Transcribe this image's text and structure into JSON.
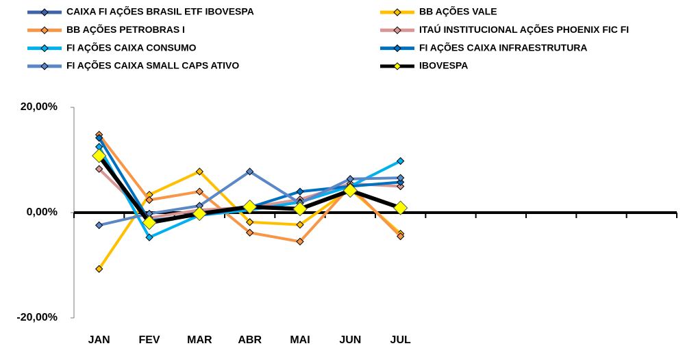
{
  "chart_data": {
    "type": "line",
    "categories": [
      "JAN",
      "FEV",
      "MAR",
      "ABR",
      "MAI",
      "JUN",
      "JUL",
      null,
      null,
      null,
      null,
      null
    ],
    "series": [
      {
        "name": "CAIXA FI AÇÕES BRASIL ETF IBOVESPA",
        "color": "#3e64a8",
        "values": [
          10.5,
          -1.8,
          0,
          1,
          0.8,
          4.2,
          1,
          null,
          null,
          null,
          null,
          null
        ]
      },
      {
        "name": "BB AÇÕES VALE",
        "color": "#ffc000",
        "values": [
          -10.7,
          3.4,
          7.8,
          -1.8,
          -2.3,
          4.5,
          -4,
          null,
          null,
          null,
          null,
          null
        ]
      },
      {
        "name": "BB AÇÕES PETROBRAS I",
        "color": "#f79646",
        "values": [
          14.8,
          2.4,
          4,
          -3.8,
          -5.5,
          5,
          -4.5,
          null,
          null,
          null,
          null,
          null
        ]
      },
      {
        "name": "ITAÚ INSTITUCIONAL AÇÕES PHOENIX FIC FI",
        "color": "#d99694",
        "values": [
          8.3,
          -1,
          0.5,
          1,
          2.5,
          5.5,
          5,
          null,
          null,
          null,
          null,
          null
        ]
      },
      {
        "name": "FI  AÇÕES CAIXA CONSUMO",
        "color": "#00b0f0",
        "values": [
          12.5,
          -4.7,
          -0.5,
          0.5,
          2,
          5,
          9.8,
          null,
          null,
          null,
          null,
          null
        ]
      },
      {
        "name": "FI  AÇÕES CAIXA INFRAESTRUTURA",
        "color": "#0070c0",
        "values": [
          14.2,
          -1.5,
          -0.5,
          1,
          4,
          5,
          5.8,
          null,
          null,
          null,
          null,
          null
        ]
      },
      {
        "name": "FI  AÇÕES CAIXA SMALL CAPS ATIVO",
        "color": "#5b87c7",
        "values": [
          -2.4,
          -0.2,
          1.3,
          7.8,
          1.8,
          6.4,
          6.6,
          null,
          null,
          null,
          null,
          null
        ]
      },
      {
        "name": "IBOVESPA",
        "color": "#000000",
        "values": [
          10.8,
          -1.9,
          -0.2,
          1.1,
          0.7,
          4.2,
          0.9,
          null,
          null,
          null,
          null,
          null
        ]
      }
    ],
    "ylim": [
      -20,
      20
    ],
    "yticks": [
      {
        "value": 20,
        "label": "20,00%"
      },
      {
        "value": 0,
        "label": "0,00%"
      },
      {
        "value": -20,
        "label": "-20,00%"
      }
    ]
  }
}
